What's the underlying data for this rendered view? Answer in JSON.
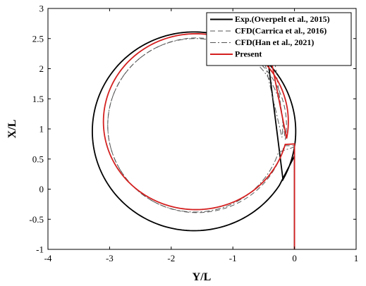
{
  "chart_data": {
    "type": "line",
    "xlabel": "Y/L",
    "ylabel": "X/L",
    "xlim": [
      -4,
      1
    ],
    "ylim": [
      -1,
      3
    ],
    "xticks": [
      "-4",
      "-3",
      "-2",
      "-1",
      "0",
      "1"
    ],
    "yticks": [
      "-1",
      "-0.5",
      "0",
      "0.5",
      "1",
      "1.5",
      "2",
      "2.5",
      "3"
    ],
    "grid": false,
    "legend_position": "top-right",
    "series": [
      {
        "name": "Exp.(Overpelt et al., 2015)",
        "color": "#000000",
        "style": "solid",
        "approach": [
          [
            0,
            -1
          ],
          [
            0,
            0.55
          ]
        ],
        "circle": {
          "center": [
            -1.63,
            0.96
          ],
          "r_x": 1.65,
          "r_y": 1.65,
          "start_deg": -33,
          "sweep_deg": -356
        },
        "end": [
          -0.45,
          2.3
        ]
      },
      {
        "name": "CFD(Carrica et al., 2016)",
        "color": "#555555",
        "style": "dashed",
        "approach": [
          [
            0,
            -1
          ],
          [
            0,
            0.72
          ]
        ],
        "circle": {
          "center": [
            -1.58,
            1.06
          ],
          "r_x": 1.45,
          "r_y": 1.45,
          "start_deg": -13.5,
          "sweep_deg": -356
        },
        "end": [
          -0.35,
          2.35
        ]
      },
      {
        "name": "CFD(Han et al., 2021)",
        "color": "#555555",
        "style": "dashdot",
        "approach": [
          [
            0,
            -1
          ],
          [
            0,
            0.7
          ]
        ],
        "circle": {
          "center": [
            -1.61,
            1.06
          ],
          "r_x": 1.42,
          "r_y": 1.44,
          "start_deg": -18,
          "sweep_deg": -350
        },
        "end": [
          -0.55,
          2.4
        ]
      },
      {
        "name": "Present",
        "color": "#d42020",
        "style": "solid",
        "approach": [
          [
            0,
            -1
          ],
          [
            0,
            0.75
          ]
        ],
        "circle": {
          "center": [
            -1.6,
            1.12
          ],
          "r_x": 1.5,
          "r_y": 1.46,
          "start_deg": -15,
          "sweep_deg": -356
        },
        "end": [
          -0.4,
          2.25
        ]
      }
    ]
  }
}
